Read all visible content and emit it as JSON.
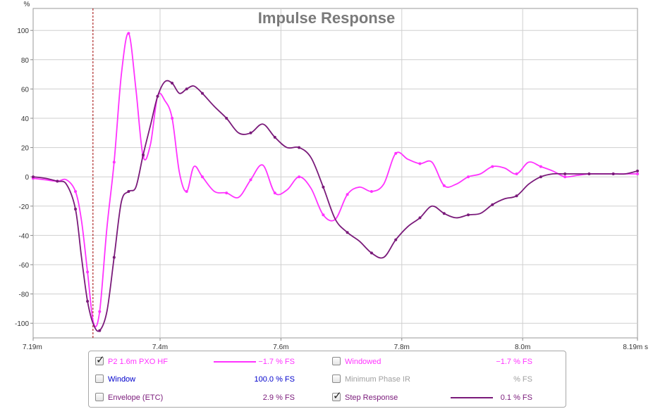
{
  "chart_data": {
    "type": "line",
    "title": "Impulse Response",
    "ylabel_unit": "%",
    "xlim": [
      7.19,
      8.19
    ],
    "ylim": [
      -110,
      115
    ],
    "y_ticks": [
      100,
      80,
      60,
      40,
      20,
      0,
      -20,
      -40,
      -60,
      -80,
      -100
    ],
    "y_tick_labels": [
      "100",
      "80",
      "60",
      "40",
      "20",
      "0",
      "-20",
      "-40",
      "-60",
      "-80",
      "-100"
    ],
    "x_ticks": [
      7.19,
      7.4,
      7.6,
      7.8,
      8.0,
      8.19
    ],
    "x_tick_labels": [
      "7.19m",
      "7.4m",
      "7.6m",
      "7.8m",
      "8.0m",
      "8.19m s"
    ],
    "grid": true,
    "marker_time": 7.289,
    "series": [
      {
        "name": "P2 1.6m PXO HF",
        "color": "#ff33ff",
        "x": [
          7.19,
          7.21,
          7.23,
          7.245,
          7.26,
          7.27,
          7.28,
          7.29,
          7.3,
          7.312,
          7.324,
          7.336,
          7.348,
          7.36,
          7.372,
          7.384,
          7.396,
          7.408,
          7.42,
          7.432,
          7.444,
          7.456,
          7.47,
          7.49,
          7.51,
          7.53,
          7.55,
          7.57,
          7.59,
          7.61,
          7.63,
          7.65,
          7.67,
          7.69,
          7.71,
          7.73,
          7.75,
          7.77,
          7.79,
          7.81,
          7.83,
          7.85,
          7.87,
          7.89,
          7.91,
          7.93,
          7.95,
          7.97,
          7.99,
          8.01,
          8.03,
          8.05,
          8.07,
          8.09,
          8.11,
          8.13,
          8.15,
          8.17,
          8.19
        ],
        "y": [
          -1,
          -2,
          -3,
          -2,
          -10,
          -30,
          -65,
          -100,
          -92,
          -35,
          10,
          70,
          98,
          60,
          14,
          22,
          55,
          52,
          40,
          3,
          -10,
          7,
          0,
          -10,
          -11,
          -14,
          -2,
          8,
          -11,
          -9,
          0,
          -8,
          -26,
          -29,
          -12,
          -7,
          -10,
          -5,
          16,
          12,
          9,
          10,
          -6,
          -5,
          0,
          2,
          7,
          6,
          2,
          10,
          7,
          4,
          0,
          1,
          2,
          2,
          2,
          2,
          2
        ]
      },
      {
        "name": "Step Response",
        "color": "#7a1a7a",
        "x": [
          7.19,
          7.21,
          7.23,
          7.245,
          7.26,
          7.27,
          7.28,
          7.29,
          7.3,
          7.312,
          7.324,
          7.336,
          7.348,
          7.36,
          7.372,
          7.384,
          7.396,
          7.408,
          7.42,
          7.432,
          7.444,
          7.456,
          7.47,
          7.49,
          7.51,
          7.53,
          7.55,
          7.57,
          7.59,
          7.61,
          7.63,
          7.65,
          7.67,
          7.69,
          7.71,
          7.73,
          7.75,
          7.77,
          7.79,
          7.81,
          7.83,
          7.85,
          7.87,
          7.89,
          7.91,
          7.93,
          7.95,
          7.97,
          7.99,
          8.01,
          8.03,
          8.05,
          8.07,
          8.09,
          8.11,
          8.13,
          8.15,
          8.17,
          8.19
        ],
        "y": [
          0,
          -1,
          -3,
          -5,
          -22,
          -55,
          -85,
          -101,
          -105,
          -92,
          -55,
          -17,
          -10,
          -7,
          15,
          35,
          55,
          65,
          64,
          57,
          60,
          62,
          57,
          48,
          40,
          30,
          30,
          36,
          27,
          20,
          20,
          13,
          -7,
          -29,
          -38,
          -44,
          -52,
          -55,
          -43,
          -34,
          -28,
          -20,
          -25,
          -28,
          -26,
          -25,
          -19,
          -15,
          -13,
          -5,
          0,
          2,
          2,
          2,
          2,
          2,
          2,
          2,
          4
        ]
      }
    ]
  },
  "legend": {
    "rows": [
      {
        "label": "P2 1.6m PXO HF",
        "value": "−1.7 % FS",
        "checked": true,
        "color": "#ff33ff",
        "show_swatch": true
      },
      {
        "label": "Windowed",
        "value": "−1.7 % FS",
        "checked": false,
        "color": "#ff33ff",
        "show_swatch": false
      },
      {
        "label": "Window",
        "value": "100.0 % FS",
        "checked": false,
        "color": "#0000cc",
        "show_swatch": false
      },
      {
        "label": "Minimum Phase IR",
        "value": "% FS",
        "checked": false,
        "color": "#a0a0a0",
        "show_swatch": false
      },
      {
        "label": "Envelope (ETC)",
        "value": "2.9 % FS",
        "checked": false,
        "color": "#7a1a7a",
        "show_swatch": false
      },
      {
        "label": "Step Response",
        "value": "0.1 % FS",
        "checked": true,
        "color": "#7a1a7a",
        "show_swatch": true
      }
    ],
    "check_glyph": "✓"
  }
}
